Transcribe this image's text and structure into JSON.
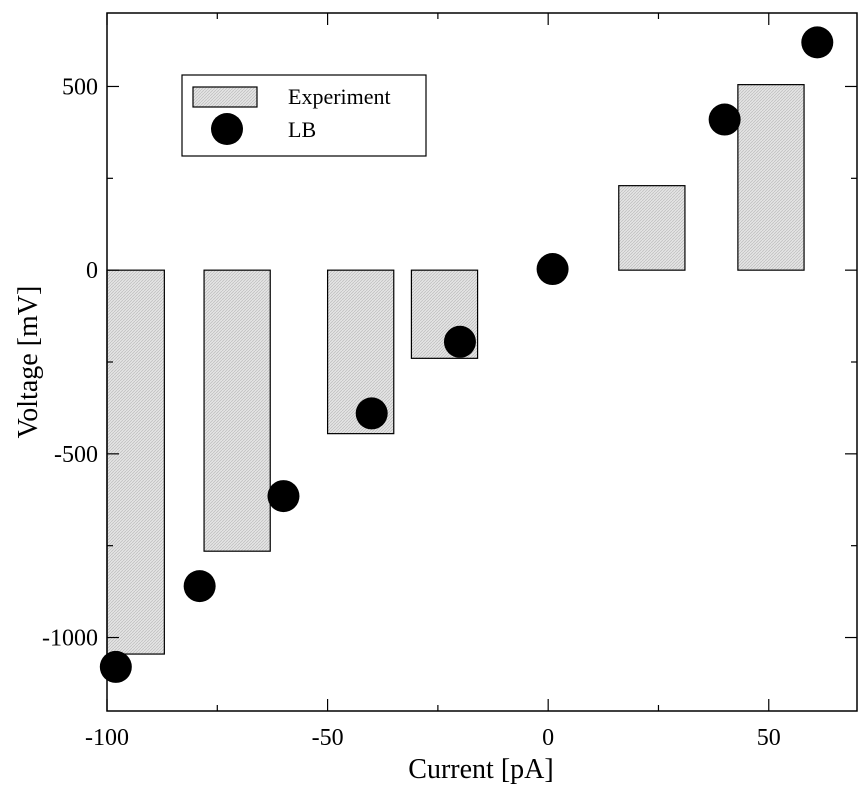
{
  "chart_data": {
    "type": "bar",
    "xlabel": "Current [pA]",
    "ylabel": "Voltage [mV]",
    "xlim": [
      -100,
      70
    ],
    "ylim": [
      -1200,
      700
    ],
    "xticks": [
      -100,
      -50,
      0,
      50
    ],
    "xtick_labels": [
      "-100",
      "-50",
      "0",
      "50"
    ],
    "yticks": [
      -1000,
      -500,
      0,
      500
    ],
    "ytick_labels": [
      "-1000",
      "-500",
      "0",
      "500"
    ],
    "legend_position": "top-left",
    "grid": false,
    "series": [
      {
        "name": "Experiment",
        "kind": "bar",
        "fill": "#e4e4e4",
        "bars": [
          {
            "x_start": -100,
            "x_end": -87,
            "value": -1045
          },
          {
            "x_start": -78,
            "x_end": -63,
            "value": -765
          },
          {
            "x_start": -50,
            "x_end": -35,
            "value": -445
          },
          {
            "x_start": -31,
            "x_end": -16,
            "value": -240
          },
          {
            "x_start": 16,
            "x_end": 31,
            "value": 230
          },
          {
            "x_start": 43,
            "x_end": 58,
            "value": 505
          }
        ]
      },
      {
        "name": "LB",
        "kind": "scatter",
        "color": "#000000",
        "points": [
          {
            "x": -98,
            "y": -1080
          },
          {
            "x": -79,
            "y": -860
          },
          {
            "x": -60,
            "y": -615
          },
          {
            "x": -40,
            "y": -390
          },
          {
            "x": -20,
            "y": -195
          },
          {
            "x": 1,
            "y": 3
          },
          {
            "x": 40,
            "y": 410
          },
          {
            "x": 61,
            "y": 620
          }
        ]
      }
    ]
  }
}
